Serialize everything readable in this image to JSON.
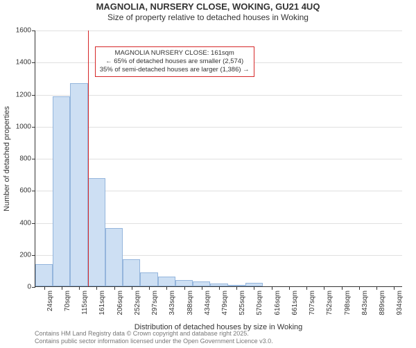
{
  "title_line1": "MAGNOLIA, NURSERY CLOSE, WOKING, GU21 4UQ",
  "title_line2": "Size of property relative to detached houses in Woking",
  "chart": {
    "type": "histogram",
    "xlabel": "Distribution of detached houses by size in Woking",
    "ylabel": "Number of detached properties",
    "ylim": [
      0,
      1600
    ],
    "ytick_step": 200,
    "background_color": "#ffffff",
    "grid_color": "#555555",
    "grid_opacity": 0.18,
    "bar_fill": "#cddff3",
    "bar_stroke": "#94b5dc",
    "label_fontsize": 11,
    "tick_fontsize": 10,
    "title_fontsize": 13,
    "x_tick_labels": [
      "24sqm",
      "70sqm",
      "115sqm",
      "161sqm",
      "206sqm",
      "252sqm",
      "297sqm",
      "343sqm",
      "388sqm",
      "434sqm",
      "479sqm",
      "525sqm",
      "570sqm",
      "616sqm",
      "661sqm",
      "707sqm",
      "752sqm",
      "798sqm",
      "843sqm",
      "889sqm",
      "934sqm"
    ],
    "bar_values": [
      140,
      1185,
      1265,
      675,
      365,
      170,
      85,
      60,
      38,
      30,
      18,
      6,
      22,
      4,
      2,
      2,
      0,
      2,
      0,
      0,
      0
    ],
    "reference_line": {
      "index": 3,
      "color": "#d62728",
      "value_sqm": 161
    },
    "annotation": {
      "border_color": "#d62728",
      "bg_color": "#ffffff",
      "fontsize": 9.5,
      "lines": [
        "MAGNOLIA NURSERY CLOSE: 161sqm",
        "← 65% of detached houses are smaller (2,574)",
        "35% of semi-detached houses are larger (1,386) →"
      ]
    }
  },
  "footer_line1": "Contains HM Land Registry data © Crown copyright and database right 2025.",
  "footer_line2": "Contains public sector information licensed under the Open Government Licence v3.0."
}
